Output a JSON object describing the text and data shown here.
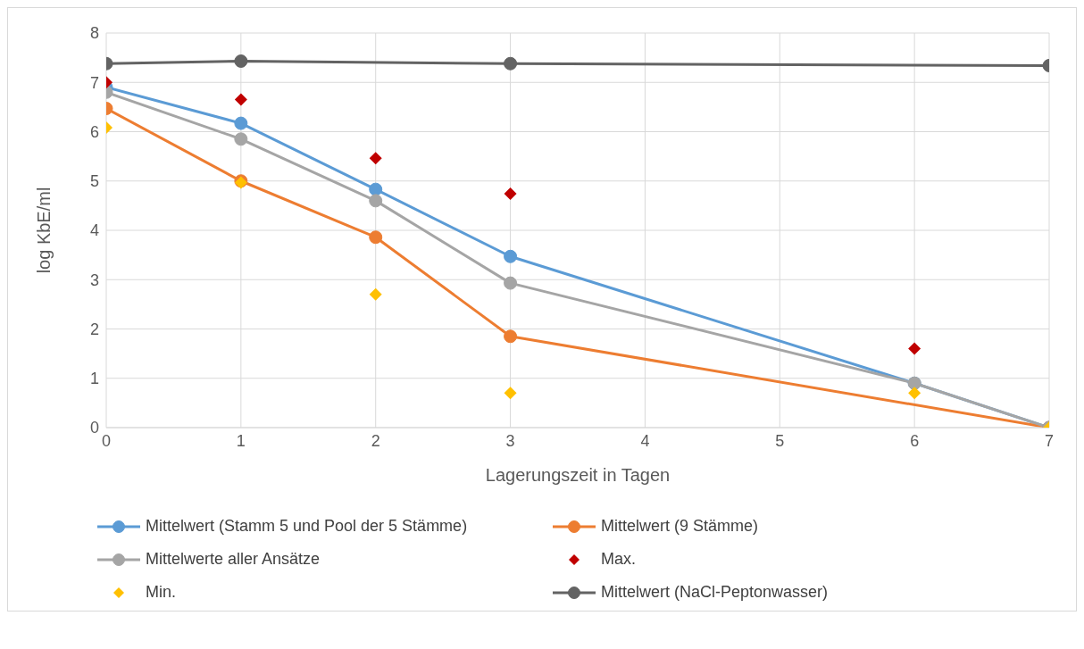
{
  "chart_data": {
    "type": "line",
    "xlabel": "Lagerungszeit in Tagen",
    "ylabel": "log KbE/ml",
    "xlim": [
      0,
      7
    ],
    "xticks": [
      0,
      1,
      2,
      3,
      4,
      5,
      6,
      7
    ],
    "ylim": [
      0,
      8
    ],
    "yticks": [
      0,
      1,
      2,
      3,
      4,
      5,
      6,
      7,
      8
    ],
    "grid": true,
    "legend": "bottom",
    "marker": "circle",
    "series": [
      {
        "name": "Mittelwert (Stamm 5 und Pool der 5 Stämme)",
        "color": "#5b9bd5",
        "x": [
          0,
          1,
          2,
          3,
          6,
          7
        ],
        "values": [
          6.9,
          6.17,
          4.83,
          3.47,
          0.9,
          0
        ]
      },
      {
        "name": "Mittelwert (9 Stämme)",
        "color": "#ed7d31",
        "x": [
          0,
          1,
          2,
          3,
          7
        ],
        "values": [
          6.47,
          5.0,
          3.86,
          1.85,
          0
        ]
      },
      {
        "name": "Mittelwerte aller Ansätze",
        "color": "#a5a5a5",
        "x": [
          0,
          1,
          2,
          3,
          6,
          7
        ],
        "values": [
          6.8,
          5.85,
          4.6,
          2.93,
          0.9,
          0
        ]
      },
      {
        "name": "Max.",
        "type": "scatter",
        "marker": "diamond",
        "color": "#c00000",
        "x": [
          0,
          1,
          2,
          3,
          6
        ],
        "values": [
          7.0,
          6.65,
          5.46,
          4.74,
          1.6
        ]
      },
      {
        "name": "Min.",
        "type": "scatter",
        "marker": "diamond",
        "color": "#ffc000",
        "x": [
          0,
          1,
          2,
          3,
          6,
          7
        ],
        "values": [
          6.08,
          4.97,
          2.7,
          0.7,
          0.7,
          0
        ]
      },
      {
        "name": "Mittelwert (NaCl-Peptonwasser)",
        "color": "#636363",
        "x": [
          0,
          1,
          3,
          7
        ],
        "values": [
          7.38,
          7.43,
          7.38,
          7.34
        ]
      }
    ]
  }
}
